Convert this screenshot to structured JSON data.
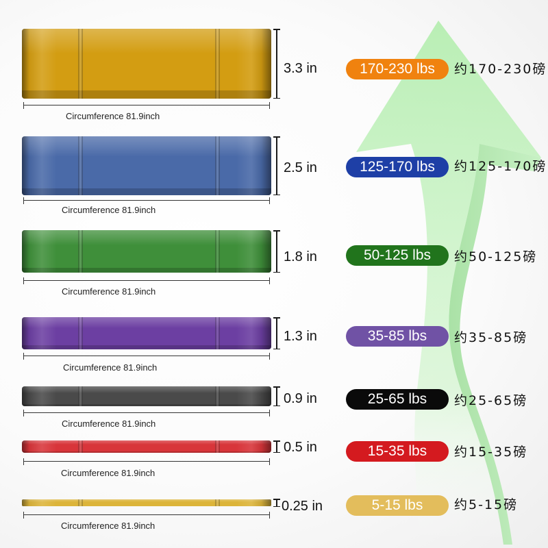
{
  "bands": [
    {
      "thickness": "3.3 in",
      "circumference": "Circumference 81.9inch",
      "resistance": "170-230 lbs",
      "approx": "约170-230磅",
      "band_color": "#d39d12",
      "pill_color": "#f0820f"
    },
    {
      "thickness": "2.5 in",
      "circumference": "Circumference 81.9inch",
      "resistance": "125-170 lbs",
      "approx": "约125-170磅",
      "band_color": "#4a6aa8",
      "pill_color": "#1e3fa6"
    },
    {
      "thickness": "1.8 in",
      "circumference": "Circumference 81.9inch",
      "resistance": "50-125 lbs",
      "approx": "约50-125磅",
      "band_color": "#3f8f3a",
      "pill_color": "#21741c"
    },
    {
      "thickness": "1.3 in",
      "circumference": "Circumference 81.9inch",
      "resistance": "35-85 lbs",
      "approx": "约35-85磅",
      "band_color": "#6c3fa2",
      "pill_color": "#7052a5"
    },
    {
      "thickness": "0.9 in",
      "circumference": "Circumference 81.9inch",
      "resistance": "25-65 lbs",
      "approx": "约25-65磅",
      "band_color": "#4a4a4a",
      "pill_color": "#0a0a0a"
    },
    {
      "thickness": "0.5 in",
      "circumference": "Circumference 81.9inch",
      "resistance": "15-35 lbs",
      "approx": "约15-35磅",
      "band_color": "#d8353a",
      "pill_color": "#d41a1f"
    },
    {
      "thickness": "0.25 in",
      "circumference": "Circumference 81.9inch",
      "resistance": "5-15 lbs",
      "approx": "约5-15磅",
      "band_color": "#dcb43a",
      "pill_color": "#e3bd5c"
    }
  ],
  "arrow_color": "#a6e7a2"
}
